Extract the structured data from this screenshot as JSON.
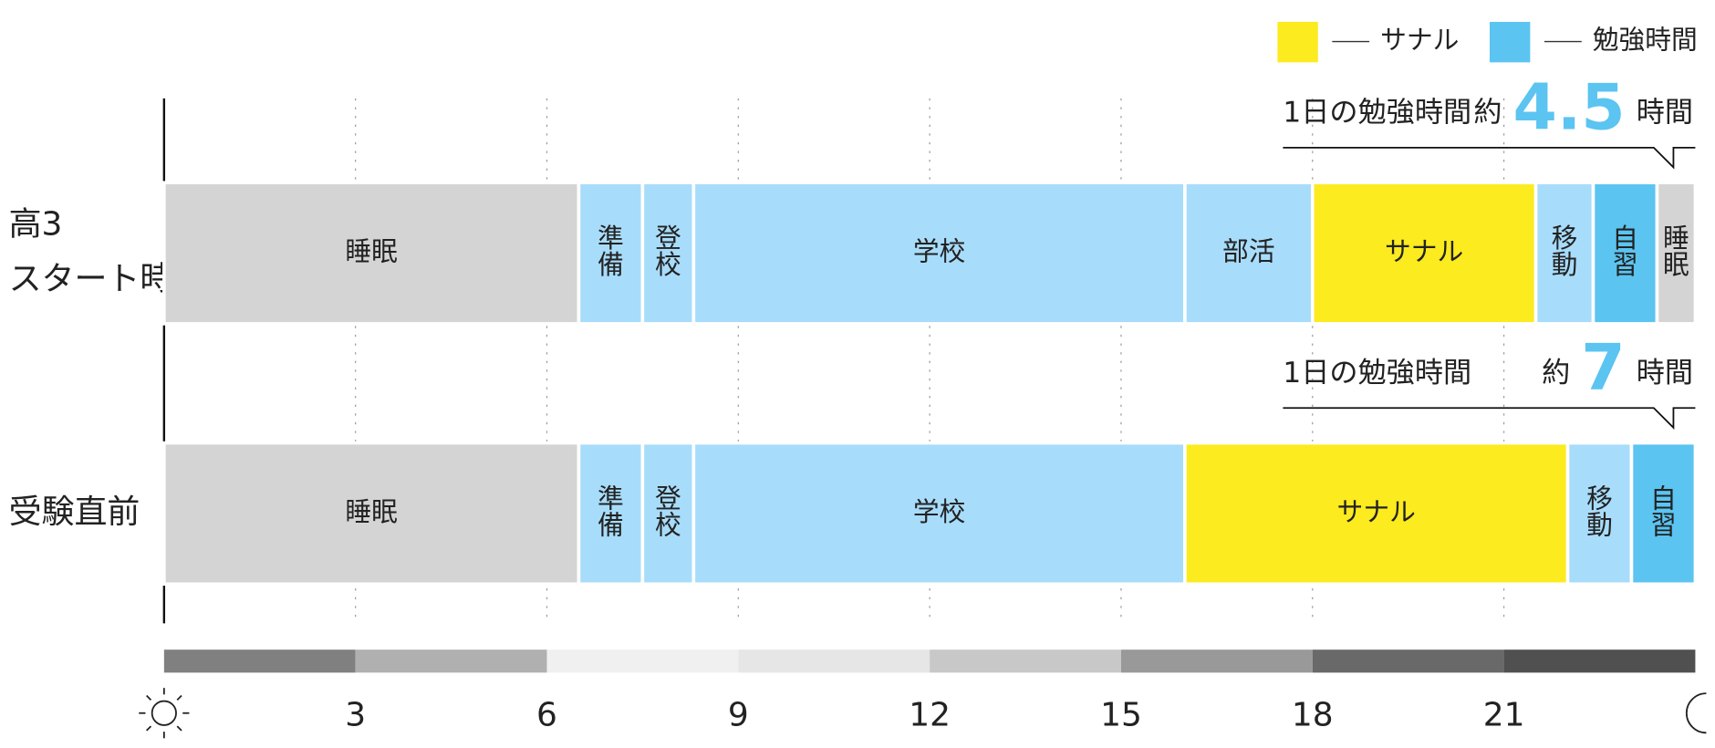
{
  "chart_data": {
    "type": "timeline",
    "xlim": [
      0,
      24
    ],
    "xticks": [
      3,
      6,
      9,
      12,
      15,
      18,
      21
    ],
    "grid": true,
    "legend": [
      {
        "name": "サナル",
        "color": "#fbeb1f"
      },
      {
        "name": "勉強時間",
        "color": "#5bc4f1"
      }
    ],
    "rows": [
      {
        "label": [
          "高3",
          "スタート時"
        ],
        "annotation": {
          "prefix": "1日の勉強時間",
          "approx": "約",
          "value": 4.5,
          "unit": "時間"
        },
        "segments": [
          {
            "name": "睡眠",
            "value": 6.5,
            "color": "#d4d4d4"
          },
          {
            "name": "準備",
            "value": 1,
            "color": "#a8dcfb"
          },
          {
            "name": "登校",
            "value": 0.8,
            "color": "#a8dcfb"
          },
          {
            "name": "学校",
            "value": 7.7,
            "color": "#a8dcfb"
          },
          {
            "name": "部活",
            "value": 2,
            "color": "#a8dcfb"
          },
          {
            "name": "サナル",
            "value": 3.5,
            "color": "#fbeb1f"
          },
          {
            "name": "移動",
            "value": 0.9,
            "color": "#a8dcfb"
          },
          {
            "name": "自習",
            "value": 1,
            "color": "#5bc4f1"
          },
          {
            "name": "睡眠",
            "value": 0.6,
            "color": "#d4d4d4"
          }
        ]
      },
      {
        "label": [
          "受験直前"
        ],
        "annotation": {
          "prefix": "1日の勉強時間",
          "approx": "約",
          "value": 7,
          "unit": "時間"
        },
        "segments": [
          {
            "name": "睡眠",
            "value": 6.5,
            "color": "#d4d4d4"
          },
          {
            "name": "準備",
            "value": 1,
            "color": "#a8dcfb"
          },
          {
            "name": "登校",
            "value": 0.8,
            "color": "#a8dcfb"
          },
          {
            "name": "学校",
            "value": 7.7,
            "color": "#a8dcfb"
          },
          {
            "name": "サナル",
            "value": 6,
            "color": "#fbeb1f"
          },
          {
            "name": "移動",
            "value": 1,
            "color": "#a8dcfb"
          },
          {
            "name": "自習",
            "value": 1,
            "color": "#5bc4f1"
          }
        ]
      }
    ]
  }
}
